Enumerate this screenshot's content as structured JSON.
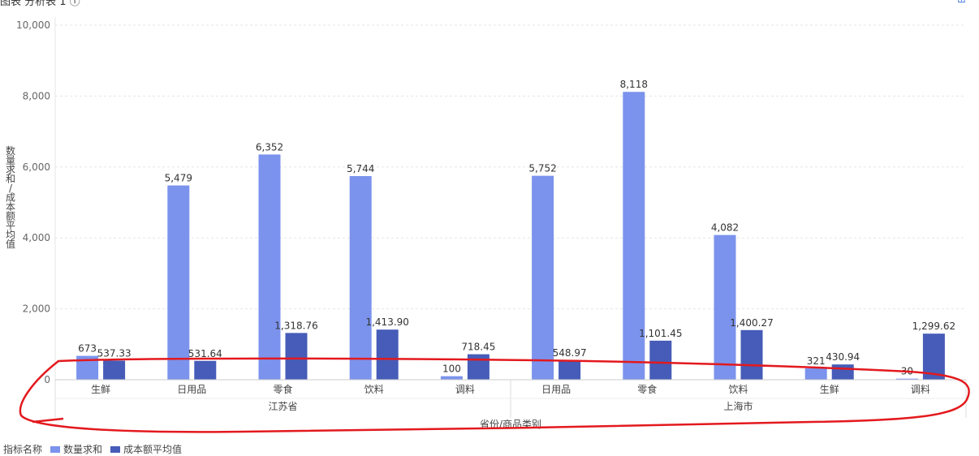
{
  "header": {
    "title": "图表 分析表 1 ⓘ",
    "icon": "table-icon"
  },
  "legend": {
    "title": "指标名称",
    "items": [
      "数量求和",
      "成本额平均值"
    ]
  },
  "colors": {
    "series1": "#7b93ed",
    "series2": "#465cb8",
    "annotation": "#e3191e",
    "grid": "#e5e5e5"
  },
  "chart_data": {
    "type": "bar",
    "ylabel": "数量求和/成本额平均值",
    "xlabel": "省份/商品类别",
    "ylim": [
      0,
      10000
    ],
    "yticks": [
      "0",
      "2,000",
      "4,000",
      "6,000",
      "8,000",
      "10,000"
    ],
    "ytick_values": [
      0,
      2000,
      4000,
      6000,
      8000,
      10000
    ],
    "groups": [
      {
        "name": "江苏省",
        "categories": [
          "生鲜",
          "日用品",
          "零食",
          "饮料",
          "调料"
        ]
      },
      {
        "name": "上海市",
        "categories": [
          "日用品",
          "零食",
          "饮料",
          "生鲜",
          "调料"
        ]
      }
    ],
    "categories": [
      "生鲜",
      "日用品",
      "零食",
      "饮料",
      "调料",
      "日用品",
      "零食",
      "饮料",
      "生鲜",
      "调料"
    ],
    "series": [
      {
        "name": "数量求和",
        "values": [
          673,
          5479,
          6352,
          5744,
          100,
          5752,
          8118,
          4082,
          321,
          30
        ],
        "labels": [
          "673",
          "5,479",
          "6,352",
          "5,744",
          "100",
          "5,752",
          "8,118",
          "4,082",
          "321",
          "30"
        ]
      },
      {
        "name": "成本额平均值",
        "values": [
          537.33,
          531.64,
          1318.76,
          1413.9,
          718.45,
          548.97,
          1101.45,
          1400.27,
          430.94,
          1299.62
        ],
        "labels": [
          "537.33",
          "531.64",
          "1,318.76",
          "1,413.90",
          "718.45",
          "548.97",
          "1,101.45",
          "1,400.27",
          "430.94",
          "1,299.62"
        ]
      }
    ],
    "grid": true,
    "legend_position": "bottom-left"
  }
}
